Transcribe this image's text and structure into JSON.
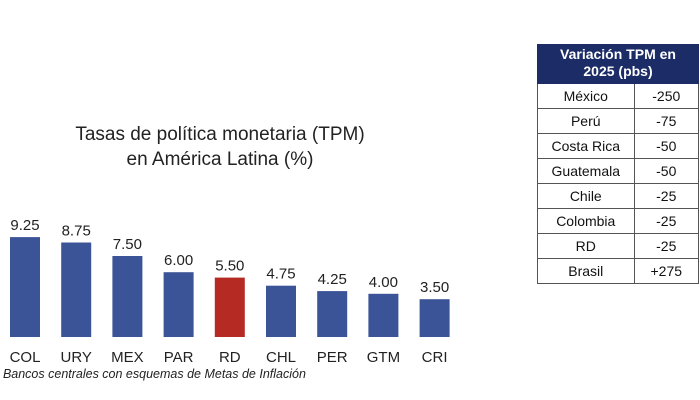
{
  "chart_data": {
    "type": "bar",
    "title_lines": [
      "Tasas de política monetaria (TPM)",
      "en América Latina (%)"
    ],
    "categories": [
      "COL",
      "URY",
      "MEX",
      "PAR",
      "RD",
      "CHL",
      "PER",
      "GTM",
      "CRI"
    ],
    "values": [
      9.25,
      8.75,
      7.5,
      6.0,
      5.5,
      4.75,
      4.25,
      4.0,
      3.5
    ],
    "value_labels": [
      "9.25",
      "8.75",
      "7.50",
      "6.00",
      "5.50",
      "4.75",
      "4.25",
      "4.00",
      "3.50"
    ],
    "highlight_category": "RD",
    "colors": {
      "default": "#3b5498",
      "highlight": "#b52a22"
    },
    "source_note": ": Bancos centrales con esquemas de Metas de Inflación"
  },
  "table": {
    "header": [
      "Variación TPM en",
      "2025 (pbs)"
    ],
    "rows": [
      {
        "country": "México",
        "value": "-250"
      },
      {
        "country": "Perú",
        "value": "-75"
      },
      {
        "country": "Costa Rica",
        "value": "-50"
      },
      {
        "country": "Guatemala",
        "value": "-50"
      },
      {
        "country": "Chile",
        "value": "-25"
      },
      {
        "country": "Colombia",
        "value": "-25"
      },
      {
        "country": "RD",
        "value": "-25"
      },
      {
        "country": "Brasil",
        "value": "+275"
      }
    ]
  }
}
